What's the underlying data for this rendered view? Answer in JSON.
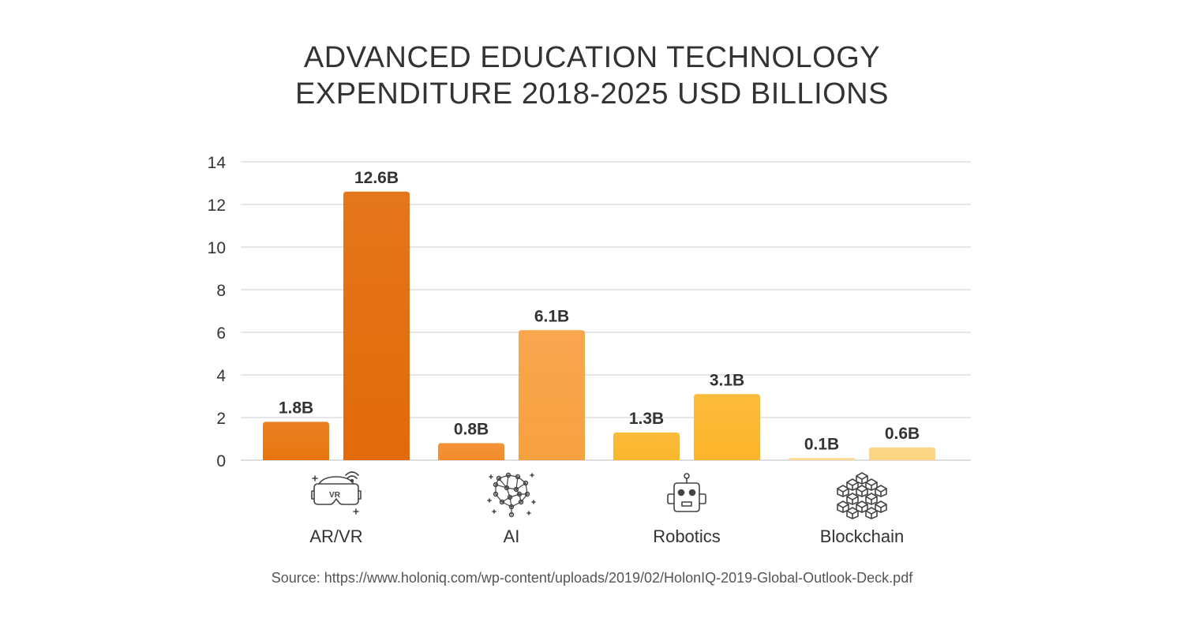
{
  "chart_data": {
    "type": "bar",
    "title_lines": [
      "ADVANCED EDUCATION TECHNOLOGY",
      "EXPENDITURE 2018-2025 USD BILLIONS"
    ],
    "categories": [
      "AR/VR",
      "AI",
      "Robotics",
      "Blockchain"
    ],
    "category_icons": [
      "vr-headset-icon",
      "ai-brain-network-icon",
      "robot-head-icon",
      "blockchain-cubes-icon"
    ],
    "values_pairs": [
      [
        1.8,
        12.6
      ],
      [
        0.8,
        6.1
      ],
      [
        1.3,
        3.1
      ],
      [
        0.1,
        0.6
      ]
    ],
    "value_labels": [
      [
        "1.8B",
        "12.6B"
      ],
      [
        "0.8B",
        "6.1B"
      ],
      [
        "1.3B",
        "3.1B"
      ],
      [
        "0.1B",
        "0.6B"
      ]
    ],
    "ylim": [
      0,
      14
    ],
    "yticks": [
      "0",
      "2",
      "4",
      "6",
      "8",
      "10",
      "12",
      "14"
    ],
    "grid": true,
    "colors": {
      "AR/VR": [
        "#e8760f",
        "#e26a08"
      ],
      "AI": [
        "#f48a2a",
        "#f7a040"
      ],
      "Robotics": [
        "#fbb62a",
        "#fcb52a"
      ],
      "Blockchain": [
        "#fcd990",
        "#fcd480"
      ],
      "grid": "#dddddd",
      "text": "#333333"
    }
  },
  "source": "Source: https://www.holoniq.com/wp-content/uploads/2019/02/HolonIQ-2019-Global-Outlook-Deck.pdf"
}
